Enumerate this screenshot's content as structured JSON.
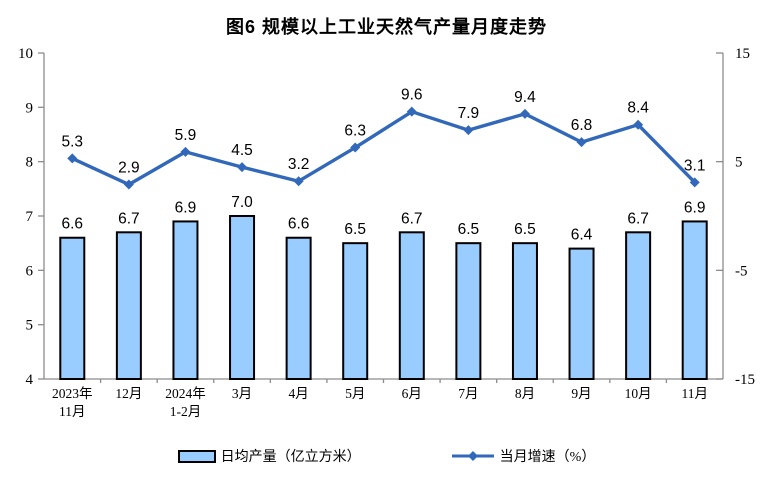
{
  "chart_data": {
    "type": "bar+line",
    "title": "图6 规模以上工业天然气产量月度走势",
    "categories": [
      [
        "2023年",
        "11月"
      ],
      [
        "12月"
      ],
      [
        "2024年",
        "1-2月"
      ],
      [
        "3月"
      ],
      [
        "4月"
      ],
      [
        "5月"
      ],
      [
        "6月"
      ],
      [
        "7月"
      ],
      [
        "8月"
      ],
      [
        "9月"
      ],
      [
        "10月"
      ],
      [
        "11月"
      ]
    ],
    "series": [
      {
        "name": "日均产量（亿立方米）",
        "type": "bar",
        "axis": "left",
        "values": [
          6.6,
          6.7,
          6.9,
          7.0,
          6.6,
          6.5,
          6.7,
          6.5,
          6.5,
          6.4,
          6.7,
          6.9
        ]
      },
      {
        "name": "当月增速（%）",
        "type": "line",
        "axis": "right",
        "values": [
          5.3,
          2.9,
          5.9,
          4.5,
          3.2,
          6.3,
          9.6,
          7.9,
          9.4,
          6.8,
          8.4,
          3.1
        ]
      }
    ],
    "left_axis": {
      "min": 4,
      "max": 10,
      "ticks": [
        10,
        9,
        8,
        7,
        6,
        5,
        4
      ]
    },
    "right_axis": {
      "min": -15,
      "max": 15,
      "ticks": [
        15,
        5,
        -5,
        -15
      ]
    },
    "legend": [
      "日均产量（亿立方米）",
      "当月增速（%）"
    ],
    "grid": "off",
    "legend_position": "bottom",
    "colors": {
      "bar_fill": "#99CCFF",
      "bar_stroke": "#000000",
      "line": "#3268BA",
      "axis": "#8C8C8C",
      "text": "#000000"
    }
  }
}
